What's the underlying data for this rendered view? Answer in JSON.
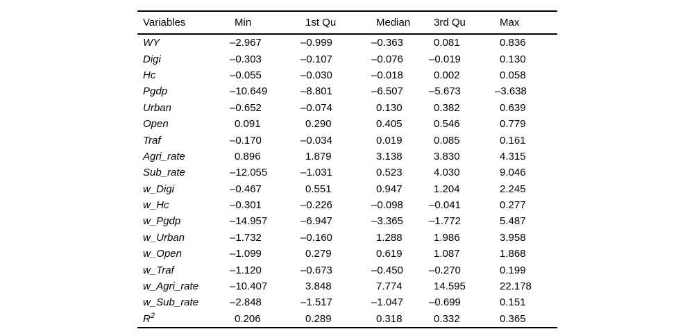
{
  "table": {
    "columns": [
      "Variables",
      "Min",
      "1st Qu",
      "Median",
      "3rd Qu",
      "Max"
    ],
    "rows": [
      {
        "label": "WY",
        "values": [
          "–2.967",
          "–0.999",
          "–0.363",
          "0.081",
          "0.836"
        ]
      },
      {
        "label": "Digi",
        "values": [
          "–0.303",
          "–0.107",
          "–0.076",
          "–0.019",
          "0.130"
        ]
      },
      {
        "label": "Hc",
        "values": [
          "–0.055",
          "–0.030",
          "–0.018",
          "0.002",
          "0.058"
        ]
      },
      {
        "label": "Pgdp",
        "values": [
          "–10.649",
          "–8.801",
          "–6.507",
          "–5.673",
          "–3.638"
        ]
      },
      {
        "label": "Urban",
        "values": [
          "–0.652",
          "–0.074",
          "0.130",
          "0.382",
          "0.639"
        ]
      },
      {
        "label": "Open",
        "values": [
          "0.091",
          "0.290",
          "0.405",
          "0.546",
          "0.779"
        ]
      },
      {
        "label": "Traf",
        "values": [
          "–0.170",
          "–0.034",
          "0.019",
          "0.085",
          "0.161"
        ]
      },
      {
        "label": "Agri_rate",
        "values": [
          "0.896",
          "1.879",
          "3.138",
          "3.830",
          "4.315"
        ]
      },
      {
        "label": "Sub_rate",
        "values": [
          "–12.055",
          "–1.031",
          "0.523",
          "4.030",
          "9.046"
        ]
      },
      {
        "label": "w_Digi",
        "values": [
          "–0.467",
          "0.551",
          "0.947",
          "1.204",
          "2.245"
        ]
      },
      {
        "label": "w_Hc",
        "values": [
          "–0.301",
          "–0.226",
          "–0.098",
          "–0.041",
          "0.277"
        ]
      },
      {
        "label": "w_Pgdp",
        "values": [
          "–14.957",
          "–6.947",
          "–3.365",
          "–1.772",
          "5.487"
        ]
      },
      {
        "label": "w_Urban",
        "values": [
          "–1.732",
          "–0.160",
          "1.288",
          "1.986",
          "3.958"
        ]
      },
      {
        "label": "w_Open",
        "values": [
          "–1.099",
          "0.279",
          "0.619",
          "1.087",
          "1.868"
        ]
      },
      {
        "label": "w_Traf",
        "values": [
          "–1.120",
          "–0.673",
          "–0.450",
          "–0.270",
          "0.199"
        ]
      },
      {
        "label": "w_Agri_rate",
        "values": [
          "–10.407",
          "3.848",
          "7.774",
          "14.595",
          "22.178"
        ]
      },
      {
        "label": "w_Sub_rate",
        "values": [
          "–2.848",
          "–1.517",
          "–1.047",
          "–0.699",
          "0.151"
        ]
      },
      {
        "label": "R",
        "sup": "2",
        "values": [
          "0.206",
          "0.289",
          "0.318",
          "0.332",
          "0.365"
        ]
      }
    ],
    "colors": {
      "text": "#000000",
      "rule": "#000000",
      "background": "#ffffff"
    }
  }
}
